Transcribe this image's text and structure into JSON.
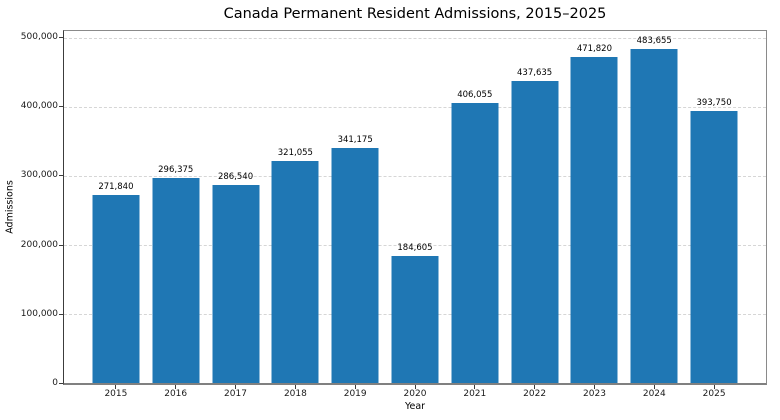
{
  "chart_data": {
    "type": "bar",
    "title": "Canada Permanent Resident Admissions, 2015–2025",
    "xlabel": "Year",
    "ylabel": "Admissions",
    "categories": [
      "2015",
      "2016",
      "2017",
      "2018",
      "2019",
      "2020",
      "2021",
      "2022",
      "2023",
      "2024",
      "2025"
    ],
    "values": [
      271840,
      296375,
      286540,
      321055,
      341175,
      184605,
      406055,
      437635,
      471820,
      483655,
      393750
    ],
    "value_labels": [
      "271,840",
      "296,375",
      "286,540",
      "321,055",
      "341,175",
      "184,605",
      "406,055",
      "437,635",
      "471,820",
      "483,655",
      "393,750"
    ],
    "ylim": [
      0,
      510000
    ],
    "yticks": [
      {
        "value": 0,
        "label": "0"
      },
      {
        "value": 100000,
        "label": "100,000"
      },
      {
        "value": 200000,
        "label": "200,000"
      },
      {
        "value": 300000,
        "label": "300,000"
      },
      {
        "value": 400000,
        "label": "400,000"
      },
      {
        "value": 500000,
        "label": "500,000"
      }
    ],
    "grid": {
      "axis": "y",
      "style": "dashed",
      "color": "#d6d6d6"
    },
    "legend": "none",
    "bar_color": "#1f77b4",
    "bar_width_fraction": 0.8
  }
}
